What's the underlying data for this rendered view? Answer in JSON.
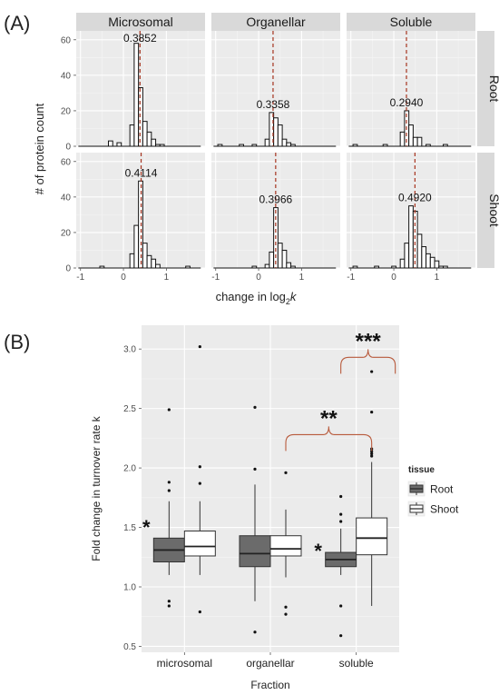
{
  "labels": {
    "panel_a": "(A)",
    "panel_b": "(B)"
  },
  "chart_data": [
    {
      "type": "histogram",
      "panel": "(A)",
      "xlabel_main": "change in log",
      "xlabel_sub": "2",
      "xlabel_var": "k",
      "ylabel": "# of protein count",
      "xlim": [
        -1.1,
        1.9
      ],
      "ylim": [
        0,
        65
      ],
      "x_ticks": [
        -1,
        0,
        1
      ],
      "y_ticks": [
        0,
        20,
        40,
        60
      ],
      "bin_width": 0.1,
      "columns": [
        "Microsomal",
        "Organellar",
        "Soluble"
      ],
      "rows": [
        "Root",
        "Shoot"
      ],
      "facets": [
        {
          "column": "Microsomal",
          "row": "Root",
          "median": 0.3852,
          "median_label": "0.3852",
          "bins": [
            {
              "x": -0.3,
              "count": 3
            },
            {
              "x": -0.1,
              "count": 2
            },
            {
              "x": 0.2,
              "count": 12
            },
            {
              "x": 0.3,
              "count": 58
            },
            {
              "x": 0.4,
              "count": 33
            },
            {
              "x": 0.5,
              "count": 14
            },
            {
              "x": 0.6,
              "count": 8
            },
            {
              "x": 0.7,
              "count": 4
            },
            {
              "x": 0.8,
              "count": 1
            },
            {
              "x": 0.9,
              "count": 1
            }
          ]
        },
        {
          "column": "Organellar",
          "row": "Root",
          "median": 0.3358,
          "median_label": "0.3358",
          "bins": [
            {
              "x": -0.9,
              "count": 1
            },
            {
              "x": -0.4,
              "count": 1
            },
            {
              "x": -0.1,
              "count": 1
            },
            {
              "x": 0.2,
              "count": 4
            },
            {
              "x": 0.3,
              "count": 19
            },
            {
              "x": 0.4,
              "count": 16
            },
            {
              "x": 0.5,
              "count": 12
            },
            {
              "x": 0.6,
              "count": 4
            },
            {
              "x": 0.7,
              "count": 2
            },
            {
              "x": 0.8,
              "count": 1
            }
          ]
        },
        {
          "column": "Soluble",
          "row": "Root",
          "median": 0.294,
          "median_label": "0.2940",
          "bins": [
            {
              "x": -0.9,
              "count": 1
            },
            {
              "x": -0.2,
              "count": 1
            },
            {
              "x": 0.2,
              "count": 8
            },
            {
              "x": 0.3,
              "count": 20
            },
            {
              "x": 0.4,
              "count": 12
            },
            {
              "x": 0.5,
              "count": 5
            },
            {
              "x": 0.6,
              "count": 5
            },
            {
              "x": 0.8,
              "count": 1
            },
            {
              "x": 1.2,
              "count": 1
            }
          ]
        },
        {
          "column": "Microsomal",
          "row": "Shoot",
          "median": 0.4114,
          "median_label": "0.4114",
          "bins": [
            {
              "x": -0.5,
              "count": 1
            },
            {
              "x": 0.2,
              "count": 8
            },
            {
              "x": 0.3,
              "count": 24
            },
            {
              "x": 0.4,
              "count": 49
            },
            {
              "x": 0.5,
              "count": 14
            },
            {
              "x": 0.6,
              "count": 7
            },
            {
              "x": 0.7,
              "count": 5
            },
            {
              "x": 0.8,
              "count": 2
            },
            {
              "x": 1.5,
              "count": 1
            }
          ]
        },
        {
          "column": "Organellar",
          "row": "Shoot",
          "median": 0.3966,
          "median_label": "0.3966",
          "bins": [
            {
              "x": -0.1,
              "count": 1
            },
            {
              "x": 0.2,
              "count": 2
            },
            {
              "x": 0.3,
              "count": 9
            },
            {
              "x": 0.4,
              "count": 34
            },
            {
              "x": 0.5,
              "count": 14
            },
            {
              "x": 0.6,
              "count": 10
            },
            {
              "x": 0.7,
              "count": 3
            },
            {
              "x": 0.8,
              "count": 1
            }
          ]
        },
        {
          "column": "Soluble",
          "row": "Shoot",
          "median": 0.492,
          "median_label": "0.4920",
          "bins": [
            {
              "x": -0.9,
              "count": 1
            },
            {
              "x": -0.4,
              "count": 1
            },
            {
              "x": 0.0,
              "count": 1
            },
            {
              "x": 0.2,
              "count": 5
            },
            {
              "x": 0.3,
              "count": 14
            },
            {
              "x": 0.4,
              "count": 35
            },
            {
              "x": 0.5,
              "count": 32
            },
            {
              "x": 0.6,
              "count": 19
            },
            {
              "x": 0.7,
              "count": 12
            },
            {
              "x": 0.8,
              "count": 8
            },
            {
              "x": 0.9,
              "count": 6
            },
            {
              "x": 1.0,
              "count": 4
            },
            {
              "x": 1.1,
              "count": 1
            },
            {
              "x": 1.2,
              "count": 1
            }
          ]
        }
      ],
      "median_line_color": "#a6341f"
    },
    {
      "type": "box",
      "panel": "(B)",
      "xlabel": "Fraction",
      "ylabel": "Fold change in turnover rate k",
      "ylim": [
        0.45,
        3.2
      ],
      "y_ticks": [
        0.5,
        1.0,
        1.5,
        2.0,
        2.5,
        3.0
      ],
      "y_tick_labels": [
        "0.5",
        "1.0",
        "1.5",
        "2.0",
        "2.5",
        "3.0"
      ],
      "categories": [
        "microsomal",
        "organellar",
        "soluble"
      ],
      "legend_title": "tissue",
      "legend_position": "right",
      "series": [
        {
          "name": "Root",
          "color": "#6b6b6b",
          "boxes": [
            {
              "q1": 1.21,
              "median": 1.31,
              "q3": 1.41,
              "whisker_low": 1.1,
              "whisker_high": 1.72,
              "outliers": [
                0.88,
                0.84,
                1.88,
                1.81,
                2.49
              ]
            },
            {
              "q1": 1.17,
              "median": 1.28,
              "q3": 1.43,
              "whisker_low": 0.88,
              "whisker_high": 1.86,
              "outliers": [
                0.62,
                1.99,
                2.51
              ]
            },
            {
              "q1": 1.17,
              "median": 1.23,
              "q3": 1.29,
              "whisker_low": 1.1,
              "whisker_high": 1.49,
              "outliers": [
                1.55,
                1.61,
                1.76,
                0.84,
                0.59
              ]
            }
          ]
        },
        {
          "name": "Shoot",
          "color": "#ffffff",
          "boxes": [
            {
              "q1": 1.26,
              "median": 1.34,
              "q3": 1.47,
              "whisker_low": 1.1,
              "whisker_high": 1.72,
              "outliers": [
                0.79,
                1.87,
                2.01,
                3.02
              ]
            },
            {
              "q1": 1.26,
              "median": 1.32,
              "q3": 1.43,
              "whisker_low": 1.08,
              "whisker_high": 1.65,
              "outliers": [
                0.83,
                0.77,
                1.96
              ]
            },
            {
              "q1": 1.27,
              "median": 1.41,
              "q3": 1.58,
              "whisker_low": 0.84,
              "whisker_high": 2.05,
              "outliers": [
                2.1,
                2.12,
                2.14,
                2.16,
                2.47,
                2.81
              ]
            }
          ]
        }
      ],
      "annotations": [
        {
          "text": "*",
          "category": "microsomal",
          "series": "Root",
          "y": 1.52
        },
        {
          "text": "*",
          "category": "soluble",
          "series": "Root",
          "y": 1.32
        },
        {
          "text": "**",
          "from_category": "organellar",
          "to_category": "soluble",
          "series": "Shoot",
          "y": 2.28
        },
        {
          "text": "***",
          "from_category": "soluble",
          "from_series": "Root",
          "to_category": "soluble",
          "to_series": "Shoot",
          "y": 2.93
        }
      ],
      "bracket_color": "#b85a3c"
    }
  ]
}
